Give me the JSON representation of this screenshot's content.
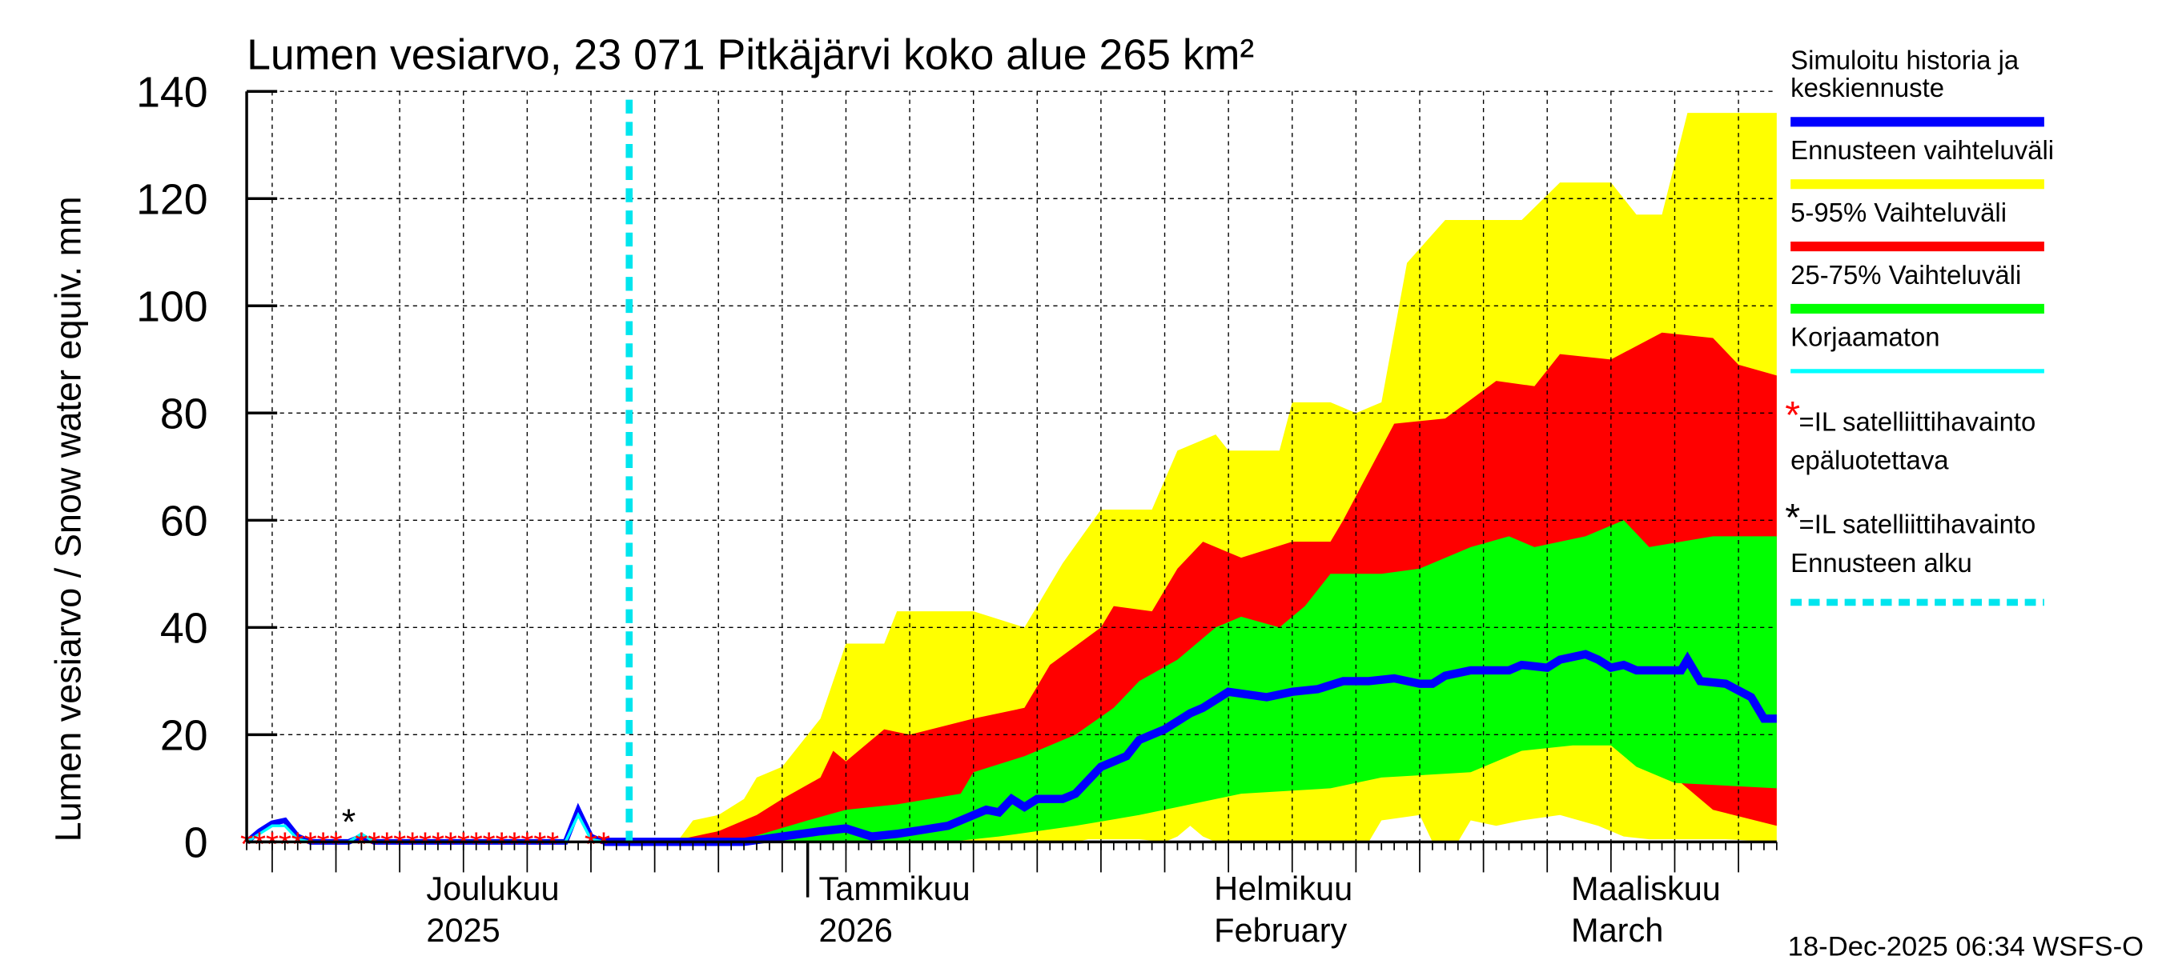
{
  "chart_data": {
    "type": "area",
    "title": "Lumen vesiarvo, 23 071 Pitkäjärvi koko alue 265 km²",
    "ylabel": "Lumen vesiarvo / Snow water equiv.    mm",
    "ylim": [
      0,
      140
    ],
    "yticks": [
      0,
      20,
      40,
      60,
      80,
      100,
      120,
      140
    ],
    "x_unit": "days since 2025-11-18",
    "xlim": [
      0,
      120
    ],
    "forecast_start_day": 30,
    "month_labels": [
      {
        "day": 13,
        "line1": "Joulukuu",
        "line2": "2025"
      },
      {
        "day": 44,
        "line1": "Tammikuu",
        "line2": "2026"
      },
      {
        "day": 75,
        "line1": "Helmikuu",
        "line2": "February"
      },
      {
        "day": 103,
        "line1": "Maaliskuu",
        "line2": "March"
      }
    ],
    "series": [
      {
        "name": "Ennusteen vaihteluväli",
        "color": "#ffff00",
        "upper": [
          [
            30,
            0
          ],
          [
            34,
            0.8
          ],
          [
            35,
            4
          ],
          [
            37,
            5
          ],
          [
            39,
            8
          ],
          [
            40,
            12
          ],
          [
            42,
            14
          ],
          [
            45,
            23
          ],
          [
            47,
            37
          ],
          [
            50,
            37
          ],
          [
            51,
            43
          ],
          [
            57,
            43
          ],
          [
            61,
            40
          ],
          [
            64,
            52
          ],
          [
            67,
            62
          ],
          [
            71,
            62
          ],
          [
            73,
            73
          ],
          [
            76,
            76
          ],
          [
            77,
            73
          ],
          [
            81,
            73
          ],
          [
            82,
            82
          ],
          [
            85,
            82
          ],
          [
            87,
            80
          ],
          [
            89,
            82
          ],
          [
            91,
            108
          ],
          [
            94,
            116
          ],
          [
            100,
            116
          ],
          [
            103,
            123
          ],
          [
            107,
            123
          ],
          [
            109,
            117
          ],
          [
            111,
            117
          ],
          [
            113,
            136
          ],
          [
            120,
            136
          ]
        ],
        "lower": [
          [
            30,
            0
          ],
          [
            65,
            0
          ],
          [
            66,
            0.5
          ],
          [
            70,
            0.5
          ],
          [
            72,
            0
          ],
          [
            73,
            1
          ],
          [
            74,
            3
          ],
          [
            75,
            1
          ],
          [
            76,
            0
          ],
          [
            88,
            0
          ],
          [
            89,
            4
          ],
          [
            92,
            5
          ],
          [
            93,
            0
          ],
          [
            95,
            0
          ],
          [
            96,
            4
          ],
          [
            98,
            3
          ],
          [
            100,
            4
          ],
          [
            103,
            5
          ],
          [
            106,
            3
          ],
          [
            108,
            1
          ],
          [
            110,
            0.5
          ],
          [
            116,
            0.5
          ],
          [
            120,
            0
          ]
        ]
      },
      {
        "name": "5-95% Vaihteluväli",
        "color": "#ff0000",
        "upper": [
          [
            30,
            0
          ],
          [
            34,
            0.5
          ],
          [
            37,
            2
          ],
          [
            40,
            5
          ],
          [
            42,
            8
          ],
          [
            45,
            12
          ],
          [
            46,
            17
          ],
          [
            47,
            15
          ],
          [
            50,
            21
          ],
          [
            52,
            20
          ],
          [
            57,
            23
          ],
          [
            61,
            25
          ],
          [
            63,
            33
          ],
          [
            67,
            40
          ],
          [
            68,
            44
          ],
          [
            71,
            43
          ],
          [
            73,
            51
          ],
          [
            75,
            56
          ],
          [
            78,
            53
          ],
          [
            82,
            56
          ],
          [
            85,
            56
          ],
          [
            86,
            60
          ],
          [
            88,
            69
          ],
          [
            90,
            78
          ],
          [
            94,
            79
          ],
          [
            98,
            86
          ],
          [
            101,
            85
          ],
          [
            103,
            91
          ],
          [
            107,
            90
          ],
          [
            111,
            95
          ],
          [
            115,
            94
          ],
          [
            117,
            89
          ],
          [
            120,
            87
          ]
        ],
        "lower": [
          [
            30,
            0
          ],
          [
            52,
            0
          ],
          [
            57,
            1
          ],
          [
            63,
            3
          ],
          [
            68,
            6
          ],
          [
            72,
            10
          ],
          [
            76,
            10
          ],
          [
            78,
            15
          ],
          [
            81,
            17
          ],
          [
            85,
            14
          ],
          [
            86,
            12
          ],
          [
            89,
            18
          ],
          [
            90,
            20
          ],
          [
            96,
            20
          ],
          [
            98,
            21
          ],
          [
            100,
            17
          ],
          [
            103,
            22
          ],
          [
            106,
            22
          ],
          [
            108,
            19
          ],
          [
            109,
            15
          ],
          [
            112,
            12
          ],
          [
            115,
            6
          ],
          [
            120,
            3
          ]
        ]
      },
      {
        "name": "25-75% Vaihteluväli",
        "color": "#00ff00",
        "upper": [
          [
            30,
            0
          ],
          [
            38,
            0
          ],
          [
            39,
            0.5
          ],
          [
            44,
            4
          ],
          [
            47,
            6
          ],
          [
            51,
            7
          ],
          [
            56,
            9
          ],
          [
            57,
            13
          ],
          [
            61,
            16
          ],
          [
            65,
            20
          ],
          [
            68,
            25
          ],
          [
            70,
            30
          ],
          [
            73,
            34
          ],
          [
            76,
            40
          ],
          [
            78,
            42
          ],
          [
            81,
            40
          ],
          [
            83,
            44
          ],
          [
            85,
            50
          ],
          [
            89,
            50
          ],
          [
            92,
            51
          ],
          [
            96,
            55
          ],
          [
            99,
            57
          ],
          [
            101,
            55
          ],
          [
            105,
            57
          ],
          [
            108,
            60
          ],
          [
            110,
            55
          ],
          [
            115,
            57
          ],
          [
            120,
            57
          ]
        ],
        "lower": [
          [
            30,
            0
          ],
          [
            55,
            0
          ],
          [
            59,
            1
          ],
          [
            65,
            3
          ],
          [
            70,
            5
          ],
          [
            74,
            7
          ],
          [
            78,
            9
          ],
          [
            85,
            10
          ],
          [
            89,
            12
          ],
          [
            96,
            13
          ],
          [
            100,
            17
          ],
          [
            104,
            18
          ],
          [
            107,
            18
          ],
          [
            109,
            14
          ],
          [
            112,
            11
          ],
          [
            120,
            10
          ]
        ]
      },
      {
        "name": "Simuloitu historia ja keskiennuste",
        "color": "#0000ff",
        "points": [
          [
            0,
            0
          ],
          [
            1,
            2
          ],
          [
            2,
            3.5
          ],
          [
            3,
            4
          ],
          [
            4,
            1
          ],
          [
            5,
            0
          ],
          [
            8,
            0
          ],
          [
            9,
            1
          ],
          [
            10,
            0
          ],
          [
            25,
            0
          ],
          [
            26,
            6
          ],
          [
            27,
            1
          ],
          [
            28,
            0
          ],
          [
            39,
            0
          ],
          [
            42,
            1
          ],
          [
            45,
            2
          ],
          [
            47,
            2.5
          ],
          [
            49,
            1
          ],
          [
            51,
            1.5
          ],
          [
            55,
            3
          ],
          [
            58,
            6
          ],
          [
            59,
            5.5
          ],
          [
            60,
            8
          ],
          [
            61,
            6.5
          ],
          [
            62,
            8
          ],
          [
            64,
            8
          ],
          [
            65,
            9
          ],
          [
            67,
            14
          ],
          [
            69,
            16
          ],
          [
            70,
            19
          ],
          [
            72,
            21
          ],
          [
            74,
            24
          ],
          [
            75,
            25
          ],
          [
            77,
            28
          ],
          [
            80,
            27
          ],
          [
            82,
            28
          ],
          [
            84,
            28.5
          ],
          [
            86,
            30
          ],
          [
            88,
            30
          ],
          [
            90,
            30.5
          ],
          [
            92,
            29.5
          ],
          [
            93,
            29.5
          ],
          [
            94,
            31
          ],
          [
            96,
            32
          ],
          [
            99,
            32
          ],
          [
            100,
            33
          ],
          [
            102,
            32.5
          ],
          [
            103,
            34
          ],
          [
            105,
            35
          ],
          [
            106,
            34
          ],
          [
            107,
            32.5
          ],
          [
            108,
            33
          ],
          [
            109,
            32
          ],
          [
            112.5,
            32
          ],
          [
            113,
            34
          ],
          [
            114,
            30
          ],
          [
            116,
            29.5
          ],
          [
            118,
            27
          ],
          [
            119,
            23
          ],
          [
            120,
            23
          ]
        ]
      },
      {
        "name": "Korjaamaton",
        "color": "#00ffff",
        "points": [
          [
            0,
            0
          ],
          [
            1,
            1.5
          ],
          [
            2,
            3
          ],
          [
            3,
            3
          ],
          [
            4,
            0.5
          ],
          [
            5,
            0
          ],
          [
            8,
            0
          ],
          [
            9,
            1.5
          ],
          [
            10,
            0
          ],
          [
            25,
            0
          ],
          [
            26,
            5
          ],
          [
            27,
            0.5
          ],
          [
            28,
            0
          ]
        ]
      }
    ],
    "satellite_obs_red_days": [
      0,
      1,
      2,
      3,
      4,
      5,
      6,
      7,
      9,
      10,
      11,
      12,
      13,
      14,
      15,
      16,
      17,
      18,
      19,
      20,
      21,
      22,
      23,
      24,
      27,
      28
    ],
    "satellite_obs_black": [
      [
        8,
        4.5
      ]
    ],
    "legend": {
      "placement": "right",
      "items": [
        {
          "label": "Simuloitu historia ja",
          "label2": "keskiennuste",
          "color": "#0000ff",
          "style": "line"
        },
        {
          "label": "Ennusteen vaihteluväli",
          "color": "#ffff00",
          "style": "line"
        },
        {
          "label": "5-95% Vaihteluväli",
          "color": "#ff0000",
          "style": "line"
        },
        {
          "label": "25-75% Vaihteluväli",
          "color": "#00ff00",
          "style": "line"
        },
        {
          "label": "Korjaamaton",
          "color": "#00ffff",
          "style": "thin"
        },
        {
          "label": "=IL satelliittihavainto",
          "color": "#ff0000",
          "style": "star"
        },
        {
          "label": "epäluotettava",
          "color": "#000000",
          "style": "none"
        },
        {
          "label": "=IL satelliittihavainto",
          "color": "#000000",
          "style": "star"
        },
        {
          "label": "Ennusteen alku",
          "color": "#00e5ee",
          "style": "dashed"
        }
      ]
    },
    "footer": "18-Dec-2025 06:34 WSFS-O"
  }
}
